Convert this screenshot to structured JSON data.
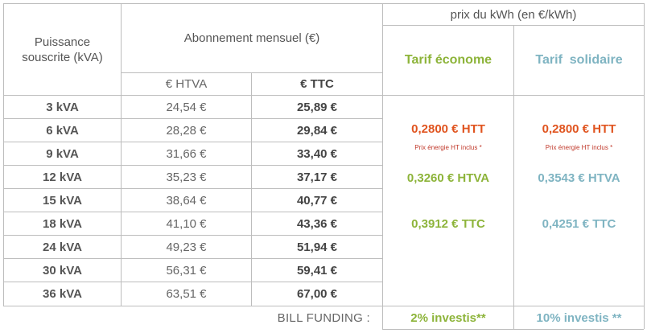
{
  "header": {
    "puissance_label": "Puissance souscrite (kVA)",
    "abonnement_label": "Abonnement mensuel (€)",
    "htva_col": "€ HTVA",
    "ttc_col": "€ TTC",
    "prix_label": "prix du kWh (en €/kWh)",
    "tarif_econome": "Tarif économe",
    "tarif_solidaire": "Tarif  solidaire"
  },
  "rows": [
    {
      "kva": "3 kVA",
      "htva": "24,54 €",
      "ttc": "25,89 €"
    },
    {
      "kva": "6 kVA",
      "htva": "28,28 €",
      "ttc": "29,84 €"
    },
    {
      "kva": "9 kVA",
      "htva": "31,66 €",
      "ttc": "33,40 €"
    },
    {
      "kva": "12 kVA",
      "htva": "35,23 €",
      "ttc": "37,17 €"
    },
    {
      "kva": "15 kVA",
      "htva": "38,64 €",
      "ttc": "40,77 €"
    },
    {
      "kva": "18 kVA",
      "htva": "41,10 €",
      "ttc": "43,36 €"
    },
    {
      "kva": "24 kVA",
      "htva": "49,23 €",
      "ttc": "51,94 €"
    },
    {
      "kva": "30 kVA",
      "htva": "56,31 €",
      "ttc": "59,41 €"
    },
    {
      "kva": "36 kVA",
      "htva": "63,51 €",
      "ttc": "67,00 €"
    }
  ],
  "econome": {
    "htt": "0,2800 € HTT",
    "note": "Prix énergie HT inclus *",
    "htva": "0,3260 € HTVA",
    "ttc": "0,3912 € TTC"
  },
  "solidaire": {
    "htt": "0,2800 € HTT",
    "note": "Prix énergie HT inclus *",
    "htva": "0,3543 € HTVA",
    "ttc": "0,4251 € TTC"
  },
  "footer": {
    "bill_funding": "BILL FUNDING :",
    "econome_invest": "2% investis**",
    "solidaire_invest": "10% investis **"
  },
  "colors": {
    "green": "#8db43a",
    "teal": "#7fb4c2",
    "red": "#e0541f",
    "grid": "#bdbdbd"
  }
}
